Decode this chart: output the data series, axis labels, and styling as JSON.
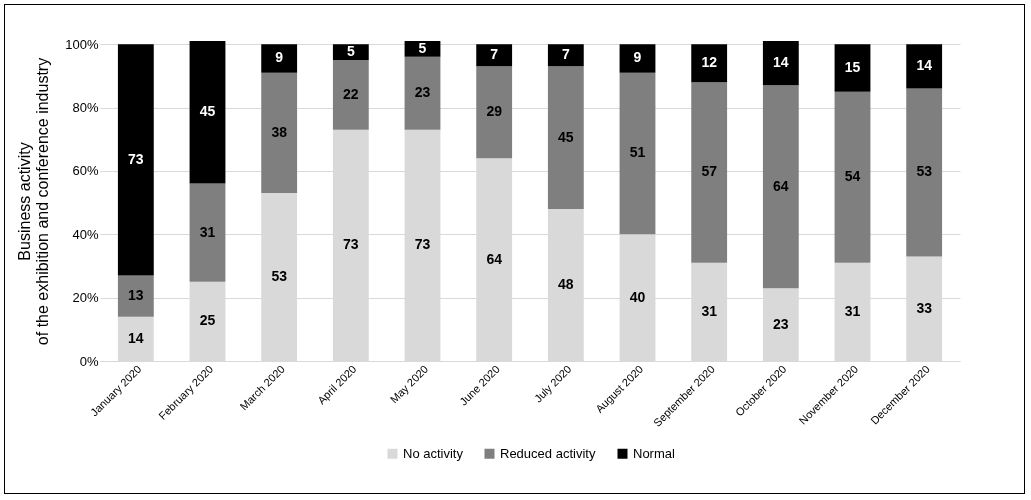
{
  "chart_data": {
    "type": "bar",
    "stacked": true,
    "ylabel": "Business activity\nof the exhibition and conference industry",
    "categories": [
      "January 2020",
      "February 2020",
      "March 2020",
      "April 2020",
      "May 2020",
      "June 2020",
      "July 2020",
      "August 2020",
      "September 2020",
      "October 2020",
      "November 2020",
      "December 2020"
    ],
    "series": [
      {
        "name": "No activity",
        "color": "#d9d9d9",
        "values": [
          14,
          25,
          53,
          73,
          73,
          64,
          48,
          40,
          31,
          23,
          31,
          33
        ]
      },
      {
        "name": "Reduced activity",
        "color": "#7f7f7f",
        "values": [
          13,
          31,
          38,
          22,
          23,
          29,
          45,
          51,
          57,
          64,
          54,
          53
        ]
      },
      {
        "name": "Normal",
        "color": "#000000",
        "values": [
          73,
          45,
          9,
          5,
          5,
          7,
          7,
          9,
          12,
          14,
          15,
          14
        ]
      }
    ],
    "ylim": [
      0,
      101
    ],
    "yticks": [
      {
        "value": 0,
        "label": "0%"
      },
      {
        "value": 20,
        "label": "20%"
      },
      {
        "value": 40,
        "label": "40%"
      },
      {
        "value": 60,
        "label": "60%"
      },
      {
        "value": 80,
        "label": "80%"
      },
      {
        "value": 100,
        "label": "100%"
      }
    ],
    "grid": "y",
    "legend": "bottom",
    "data_labels": true
  }
}
